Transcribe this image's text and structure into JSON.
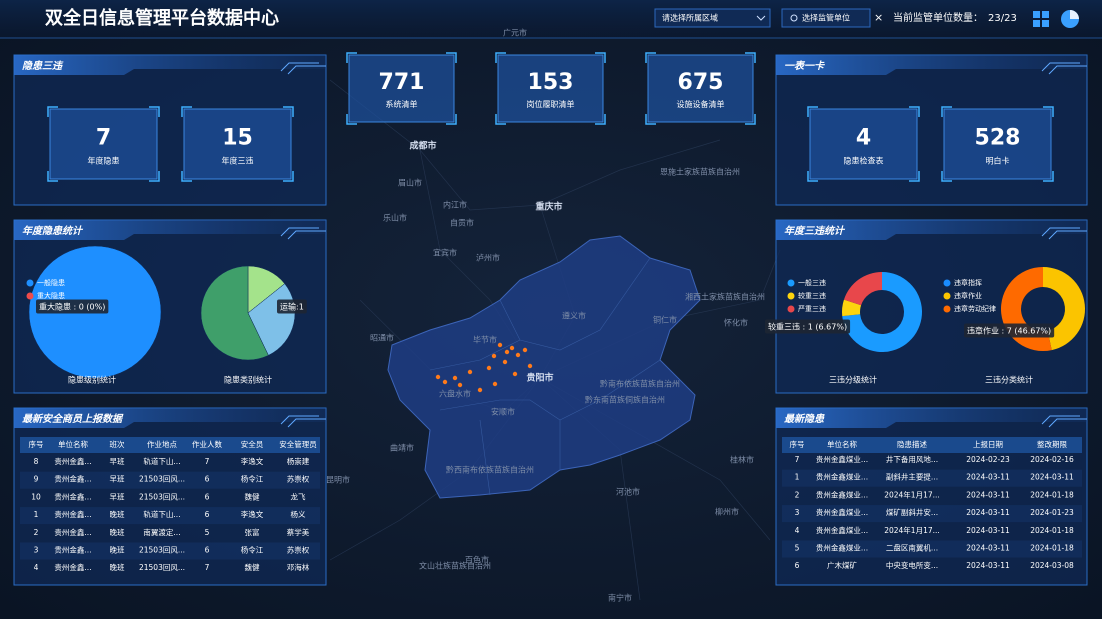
{
  "header": {
    "title": "双全日信息管理平台数据中心",
    "region_select": "请选择所属区域",
    "unit_button": "选择监管单位",
    "close": "×",
    "count_label": "当前监管单位数量：",
    "count_value": "23/23"
  },
  "summary": [
    {
      "value": 771,
      "label": "系统清单"
    },
    {
      "value": 153,
      "label": "岗位履职清单"
    },
    {
      "value": 675,
      "label": "设施设备清单"
    }
  ],
  "hazard_violation_panel": {
    "title": "隐患三违",
    "items": [
      {
        "value": 7,
        "label": "年度隐患"
      },
      {
        "value": 15,
        "label": "年度三违"
      }
    ]
  },
  "table_card_panel": {
    "title": "一表一卡",
    "items": [
      {
        "value": 4,
        "label": "隐患检查表"
      },
      {
        "value": 528,
        "label": "明白卡"
      }
    ]
  },
  "annual_hazard_panel": {
    "title": "年度隐患统计",
    "charts": [
      {
        "type": "pie",
        "caption": "隐患级别统计",
        "categories": [
          "一般隐患",
          "重大隐患"
        ],
        "values": [
          7,
          0
        ],
        "colors": [
          "#1e8fff",
          "#ee4b4b"
        ],
        "legend": true,
        "tooltip": "重大隐患 : 0 (0%)"
      },
      {
        "type": "pie",
        "caption": "隐患类别统计",
        "categories": [
          "运输",
          null,
          null
        ],
        "values": [
          1,
          2,
          4
        ],
        "colors": [
          "#a4e38b",
          "#7ec0e8",
          "#3f9f6a"
        ],
        "legend": false,
        "tooltip": "运输:1"
      }
    ]
  },
  "annual_violation_panel": {
    "title": "年度三违统计",
    "charts": [
      {
        "type": "donut",
        "caption": "三违分级统计",
        "categories": [
          "一般三违",
          "较重三违",
          "严重三违"
        ],
        "values": [
          11,
          1,
          3
        ],
        "colors": [
          "#1a9bff",
          "#fdd40e",
          "#e8474b"
        ],
        "legend": true,
        "tooltip": "较重三违 : 1 (6.67%)"
      },
      {
        "type": "donut",
        "caption": "三违分类统计",
        "categories": [
          "违章指挥",
          "违章作业",
          "违章劳动纪律"
        ],
        "values": [
          0,
          7,
          8
        ],
        "colors": [
          "#1a8cff",
          "#fbc400",
          "#fe6a00"
        ],
        "legend": true,
        "tooltip": "违章作业 : 7 (46.67%)"
      }
    ]
  },
  "safety_table": {
    "title": "最新安全商员上报数据",
    "columns": [
      "序号",
      "单位名称",
      "班次",
      "作业地点",
      "作业人数",
      "安全员",
      "安全管理员"
    ],
    "rows": [
      [
        8,
        "贵州金鑫...",
        "早班",
        "轨道下山...",
        7,
        "李逸文",
        "杨崇建"
      ],
      [
        9,
        "贵州金鑫...",
        "早班",
        "21503回风...",
        6,
        "杨令江",
        "苏崇权"
      ],
      [
        10,
        "贵州金鑫...",
        "早班",
        "21503回风...",
        6,
        "魏健",
        "龙飞"
      ],
      [
        1,
        "贵州金鑫...",
        "晚班",
        "轨道下山...",
        6,
        "李逸文",
        "杨义"
      ],
      [
        2,
        "贵州金鑫...",
        "晚班",
        "南翼渡定...",
        5,
        "张富",
        "蔡学美"
      ],
      [
        3,
        "贵州金鑫...",
        "晚班",
        "21503回风...",
        6,
        "杨令江",
        "苏崇权"
      ],
      [
        4,
        "贵州金鑫...",
        "晚班",
        "21503回风...",
        7,
        "魏健",
        "邓海林"
      ]
    ]
  },
  "hazard_table": {
    "title": "最新隐患",
    "columns": [
      "序号",
      "单位名称",
      "隐患描述",
      "上报日期",
      "整改期限"
    ],
    "rows": [
      [
        7,
        "贵州金鑫煤业...",
        "井下备用风地...",
        "2024-02-23",
        "2024-02-16"
      ],
      [
        1,
        "贵州金鑫煤业...",
        "副斜井主要提...",
        "2024-03-11",
        "2024-03-11"
      ],
      [
        2,
        "贵州金鑫煤业...",
        "2024年1月17...",
        "2024-03-11",
        "2024-01-18"
      ],
      [
        3,
        "贵州金鑫煤业...",
        "煤矿副斜井安...",
        "2024-03-11",
        "2024-01-23"
      ],
      [
        4,
        "贵州金鑫煤业...",
        "2024年1月17...",
        "2024-03-11",
        "2024-01-18"
      ],
      [
        5,
        "贵州金鑫煤业...",
        "二盘区南翼机...",
        "2024-03-11",
        "2024-01-18"
      ],
      [
        6,
        "广木煤矿",
        "中央变电所变...",
        "2024-03-11",
        "2024-03-08"
      ]
    ]
  },
  "map": {
    "labels": [
      "广元市",
      "成都市",
      "眉山市",
      "内江市",
      "乐山市",
      "自贡市",
      "宜宾市",
      "泸州市",
      "重庆市",
      "恩施土家族苗族自治州",
      "湘西土家族苗族自治州",
      "怀化市",
      "遵义市",
      "铜仁市",
      "毕节市",
      "昭通市",
      "贵阳市",
      "六盘水市",
      "安顺市",
      "黔南布依族苗族自治州",
      "黔东南苗族侗族自治州",
      "黔西南布依族苗族自治州",
      "曲靖市",
      "昆明市",
      "桂林市",
      "河池市",
      "柳州市",
      "百色市",
      "文山壮族苗族自治州",
      "南宁市"
    ]
  }
}
